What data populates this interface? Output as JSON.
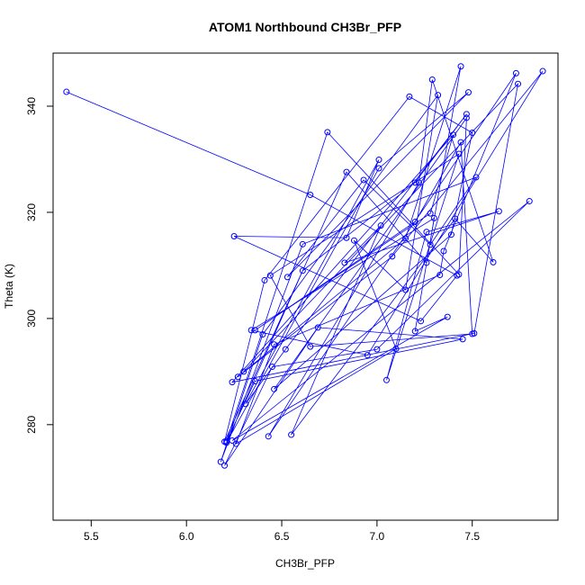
{
  "chart_data": {
    "type": "line",
    "title": "ATOM1 Northbound CH3Br_PFP",
    "xlabel": "CH3Br_PFP",
    "ylabel": "Theta (K)",
    "xlim": [
      5.3,
      7.95
    ],
    "ylim": [
      262,
      350
    ],
    "xticks": [
      {
        "value": 5.5,
        "label": "5.5"
      },
      {
        "value": 6.0,
        "label": "6.0"
      },
      {
        "value": 6.5,
        "label": "6.5"
      },
      {
        "value": 7.0,
        "label": "7.0"
      },
      {
        "value": 7.5,
        "label": "7.5"
      }
    ],
    "yticks": [
      {
        "value": 280,
        "label": "280"
      },
      {
        "value": 300,
        "label": "300"
      },
      {
        "value": 320,
        "label": "320"
      },
      {
        "value": 340,
        "label": "340"
      }
    ],
    "grid": false,
    "legend": "none",
    "series_color": "#0000ff",
    "series": [
      {
        "x": [
          5.37,
          6.65,
          7.42,
          7.23,
          6.25,
          6.84,
          7.01,
          6.31,
          6.52,
          7.47,
          7.2,
          6.61,
          6.2,
          6.41,
          7.17,
          7.5,
          7.39,
          6.46,
          7.47,
          7.43,
          6.74,
          6.21,
          6.36,
          7.45,
          6.69,
          6.2,
          6.45,
          7.0,
          7.8,
          6.24,
          7.37,
          7.2,
          7.3,
          6.34,
          6.95,
          7.87,
          7.08,
          6.27,
          7.15,
          7.44,
          7.26,
          6.84,
          6.21,
          7.01,
          7.48,
          6.53,
          6.93,
          7.28,
          7.52,
          6.61,
          6.18,
          6.4,
          7.32,
          7.15,
          6.88,
          7.1,
          6.26,
          6.46,
          7.33,
          7.35,
          7.73,
          6.43,
          7.22,
          7.29,
          7.61,
          7.41,
          6.55,
          7.02,
          6.83,
          7.64,
          7.26,
          7.05,
          7.43,
          6.44,
          6.65,
          7.5,
          7.44,
          7.2,
          6.36,
          7.28,
          7.4,
          6.24,
          7.51,
          7.74,
          6.3
        ],
        "y": [
          342.7,
          323.3,
          308.1,
          299.5,
          315.5,
          315.2,
          329.9,
          283.9,
          294.2,
          338.5,
          325.6,
          309.0,
          276.8,
          307.2,
          341.8,
          335.0,
          315.8,
          286.7,
          337.8,
          308.3,
          335.1,
          276.9,
          288.2,
          296.1,
          298.3,
          272.3,
          290.9,
          294.2,
          322.1,
          277.0,
          300.3,
          297.6,
          318.9,
          297.8,
          293.1,
          346.6,
          311.7,
          289.0,
          315.1,
          347.5,
          310.5,
          327.6,
          276.6,
          328.3,
          342.6,
          307.8,
          326.1,
          313.9,
          326.6,
          314.0,
          273.0,
          297.0,
          342.1,
          305.4,
          314.7,
          294.3,
          276.4,
          295.1,
          308.2,
          312.7,
          346.2,
          277.8,
          325.6,
          345.0,
          310.6,
          318.8,
          278.1,
          317.5,
          310.5,
          320.2,
          316.3,
          288.4,
          331.0,
          308.1,
          294.7,
          297.1,
          333.2,
          318.2,
          297.8,
          319.8,
          334.6,
          288.0,
          297.2,
          344.2,
          290.0
        ]
      }
    ]
  }
}
